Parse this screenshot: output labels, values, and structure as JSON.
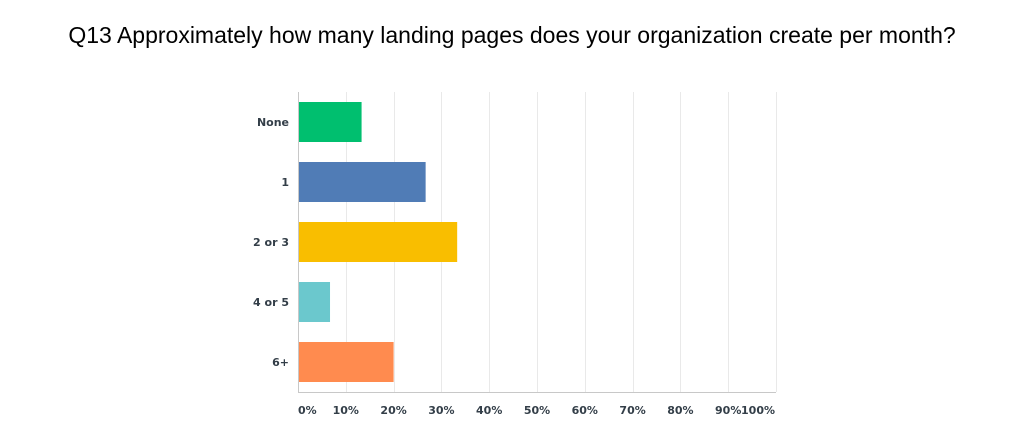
{
  "chart_data": {
    "type": "bar",
    "orientation": "horizontal",
    "title": "Q13 Approximately how many landing pages does your organization create per month?",
    "categories": [
      "None",
      "1",
      "2 or 3",
      "4 or 5",
      "6+"
    ],
    "values": [
      13.3,
      26.7,
      33.3,
      6.7,
      20.0
    ],
    "bar_colors": [
      "#00BF6F",
      "#507CB6",
      "#F9BE00",
      "#6BC8CD",
      "#FF8B4F"
    ],
    "xlim": [
      0,
      100
    ],
    "x_ticks": [
      "0%",
      "10%",
      "20%",
      "30%",
      "40%",
      "50%",
      "60%",
      "70%",
      "80%",
      "90%",
      "100%"
    ],
    "x_tick_values": [
      0,
      10,
      20,
      30,
      40,
      50,
      60,
      70,
      80,
      90,
      100
    ],
    "grid": true,
    "legend": "none"
  }
}
